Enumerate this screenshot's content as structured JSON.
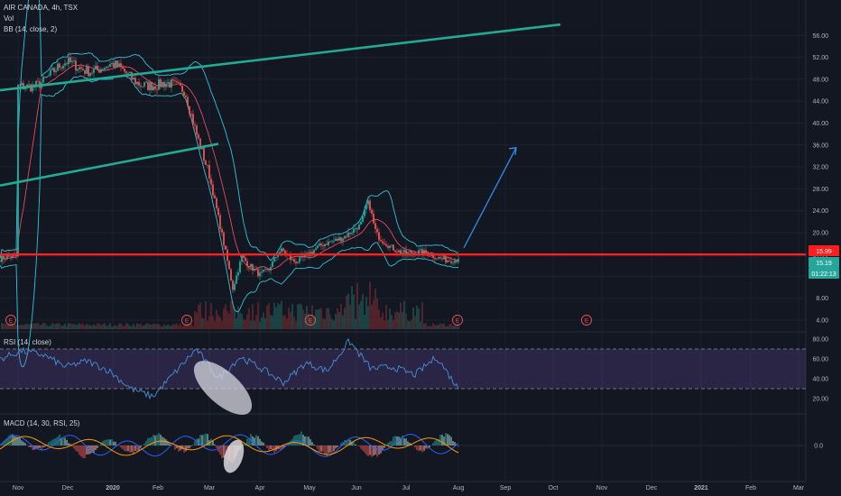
{
  "header": {
    "symbol_label": "AIR CANADA, 4h, TSX",
    "volume_label": "Vol",
    "bb_label": "BB (14, close, 2)"
  },
  "rsi_panel": {
    "label": "RSI (14, close)"
  },
  "macd_panel": {
    "label": "MACD (14, 30, RSI, 25)"
  },
  "price_badges": {
    "upper": "15.99",
    "lower": "15.19",
    "countdown": "01:22:13"
  },
  "earnings_marker": "E",
  "colors": {
    "background": "#131722",
    "support_line": "#ff1e1e",
    "trend_channel": "#22ab94",
    "bb_bands": "#2ec4d8",
    "bb_basis": "#ff4f6b",
    "rsi_line": "#4a8fd8",
    "rsi_band": "#7e57c2",
    "macd_line": "#2962ff",
    "signal_line": "#ff9800",
    "up": "#26a69a",
    "down": "#ef5350",
    "forecast_arrow": "#2f8ee8"
  },
  "chart_data": [
    {
      "type": "line",
      "title": "AIR CANADA, 4h, TSX",
      "description_series": "candlestick price with Bollinger Bands (14, close, 2) and volume",
      "x_labels": [
        "Nov",
        "Dec",
        "2020",
        "Feb",
        "Mar",
        "Apr",
        "May",
        "Jun",
        "Jul",
        "Aug",
        "Sep",
        "Oct",
        "Nov",
        "Dec",
        "2021",
        "Feb",
        "Mar"
      ],
      "y_ticks": [
        4.0,
        8.0,
        12.0,
        16.0,
        20.0,
        24.0,
        28.0,
        32.0,
        36.0,
        40.0,
        44.0,
        48.0,
        52.0,
        56.0
      ],
      "ylim": [
        2,
        58
      ],
      "close": [
        [
          "Nov",
          46
        ],
        [
          "Dec",
          50.5
        ],
        [
          "2020",
          50
        ],
        [
          "Feb",
          46.5
        ],
        [
          "Mar",
          30
        ],
        [
          "Apr",
          12
        ],
        [
          "May",
          16
        ],
        [
          "Jun",
          21
        ],
        [
          "Jul",
          16.3
        ],
        [
          "Aug",
          15.19
        ]
      ],
      "horizontal_levels": [
        15.99
      ],
      "trend_lines": [
        {
          "name": "upper channel",
          "from": [
            "Nov",
            46
          ],
          "to": [
            "Oct",
            58
          ]
        },
        {
          "name": "lower channel",
          "from": [
            "Nov",
            28.6
          ],
          "to": [
            "Mar",
            36.2
          ]
        }
      ],
      "projection": {
        "from": [
          "Aug",
          17.2
        ],
        "to": [
          "Sep",
          35.5
        ]
      },
      "last_price": 15.19
    },
    {
      "type": "line",
      "title": "RSI (14, close)",
      "y_ticks": [
        20.0,
        40.0,
        60.0,
        80.0
      ],
      "band": [
        30,
        70
      ],
      "values": [
        60,
        68,
        64,
        52,
        58,
        48,
        30,
        22,
        46,
        70,
        40,
        62,
        50,
        36,
        56,
        48,
        78,
        50,
        52,
        44,
        62,
        30
      ]
    },
    {
      "type": "bar",
      "title": "MACD (14, 30, RSI, 25)",
      "y_ticks": [
        0.0
      ]
    }
  ]
}
